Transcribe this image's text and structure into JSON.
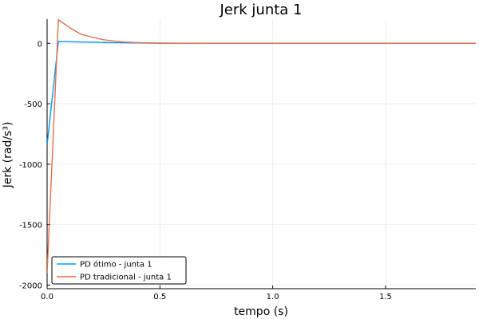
{
  "chart_data": {
    "type": "line",
    "title": "Jerk junta 1",
    "xlabel": "tempo (s)",
    "ylabel": "Jerk (rad/s³)",
    "xlim": [
      0,
      1.9
    ],
    "ylim": [
      -2030,
      200
    ],
    "grid": true,
    "legend_placement": "bottom-left",
    "x_ticks": [
      {
        "value": 0.0,
        "label": "0.0"
      },
      {
        "value": 0.5,
        "label": "0.5"
      },
      {
        "value": 1.0,
        "label": "1.0"
      },
      {
        "value": 1.5,
        "label": "1.5"
      }
    ],
    "y_ticks": [
      {
        "value": 0,
        "label": "0"
      },
      {
        "value": -500,
        "label": "-500"
      },
      {
        "value": -1000,
        "label": "-1000"
      },
      {
        "value": -1500,
        "label": "-1500"
      },
      {
        "value": -2000,
        "label": "-2000"
      }
    ],
    "series": [
      {
        "name": "PD ótimo - junta 1",
        "color": "#009AFA",
        "x": [
          0,
          0.05,
          0.1,
          0.15,
          0.2,
          0.25,
          0.3,
          0.35,
          0.4,
          0.45,
          0.5,
          0.6,
          0.7,
          0.8,
          0.9,
          1.0,
          1.1,
          1.2,
          1.3,
          1.4,
          1.5,
          1.6,
          1.7,
          1.8,
          1.9
        ],
        "y": [
          -840,
          15,
          13,
          11,
          9,
          7,
          5,
          4,
          3,
          2,
          1,
          0,
          0,
          0,
          0,
          0,
          0,
          0,
          0,
          0,
          0,
          0,
          0,
          0,
          0
        ]
      },
      {
        "name": "PD tradicional - junta 1",
        "color": "#E36F47",
        "x": [
          0,
          0.05,
          0.1,
          0.15,
          0.2,
          0.25,
          0.3,
          0.35,
          0.4,
          0.45,
          0.5,
          0.6,
          0.7,
          0.8,
          0.9,
          1.0,
          1.1,
          1.2,
          1.3,
          1.4,
          1.5,
          1.6,
          1.7,
          1.8,
          1.9
        ],
        "y": [
          -1900,
          195,
          130,
          75,
          50,
          30,
          18,
          10,
          6,
          3,
          2,
          1,
          0,
          0,
          0,
          0,
          0,
          0,
          0,
          0,
          0,
          0,
          0,
          0,
          0
        ]
      }
    ]
  }
}
